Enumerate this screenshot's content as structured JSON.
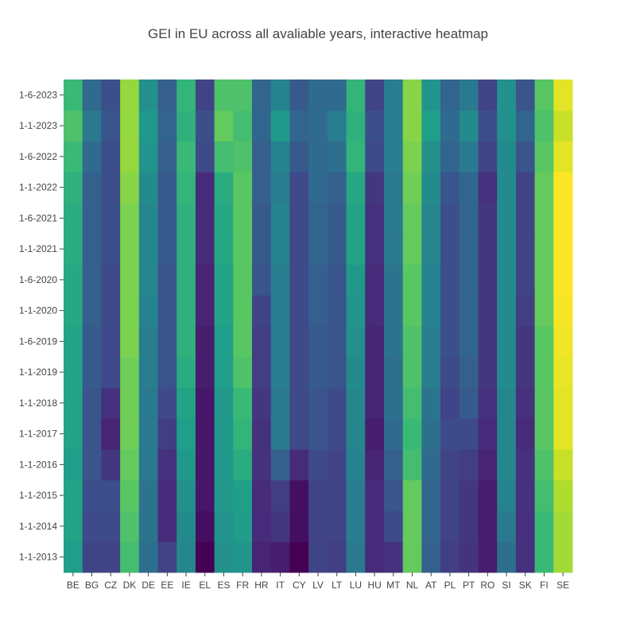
{
  "chart_data": {
    "type": "heatmap",
    "title": "GEI in EU across all avaliable years, interactive heatmap",
    "colorscale": "viridis",
    "value_range": [
      0,
      1
    ],
    "x": [
      "BE",
      "BG",
      "CZ",
      "DK",
      "DE",
      "EE",
      "IE",
      "EL",
      "ES",
      "FR",
      "HR",
      "IT",
      "CY",
      "LV",
      "LT",
      "LU",
      "HU",
      "MT",
      "NL",
      "AT",
      "PL",
      "PT",
      "RO",
      "SI",
      "SK",
      "FI",
      "SE"
    ],
    "y": [
      "1-1-2013",
      "1-1-2014",
      "1-1-2015",
      "1-1-2016",
      "1-1-2017",
      "1-1-2018",
      "1-1-2019",
      "1-6-2019",
      "1-1-2020",
      "1-6-2020",
      "1-1-2021",
      "1-6-2021",
      "1-1-2022",
      "1-6-2022",
      "1-1-2023",
      "1-6-2023"
    ],
    "z": [
      [
        0.56,
        0.2,
        0.2,
        0.7,
        0.36,
        0.2,
        0.46,
        0.0,
        0.5,
        0.52,
        0.1,
        0.08,
        0.0,
        0.2,
        0.18,
        0.4,
        0.12,
        0.14,
        0.76,
        0.3,
        0.18,
        0.15,
        0.08,
        0.36,
        0.14,
        0.68,
        0.86
      ],
      [
        0.58,
        0.22,
        0.22,
        0.72,
        0.38,
        0.12,
        0.48,
        0.04,
        0.52,
        0.55,
        0.12,
        0.16,
        0.04,
        0.2,
        0.2,
        0.42,
        0.12,
        0.22,
        0.76,
        0.32,
        0.2,
        0.16,
        0.08,
        0.4,
        0.14,
        0.68,
        0.86
      ],
      [
        0.58,
        0.24,
        0.24,
        0.74,
        0.38,
        0.12,
        0.5,
        0.06,
        0.54,
        0.56,
        0.12,
        0.18,
        0.04,
        0.2,
        0.2,
        0.42,
        0.12,
        0.26,
        0.76,
        0.32,
        0.2,
        0.16,
        0.08,
        0.44,
        0.14,
        0.7,
        0.88
      ],
      [
        0.56,
        0.26,
        0.16,
        0.76,
        0.4,
        0.14,
        0.54,
        0.06,
        0.54,
        0.62,
        0.14,
        0.3,
        0.12,
        0.22,
        0.2,
        0.44,
        0.1,
        0.3,
        0.7,
        0.34,
        0.2,
        0.18,
        0.1,
        0.46,
        0.14,
        0.72,
        0.92
      ],
      [
        0.58,
        0.26,
        0.1,
        0.78,
        0.4,
        0.18,
        0.56,
        0.06,
        0.54,
        0.66,
        0.14,
        0.4,
        0.22,
        0.26,
        0.22,
        0.46,
        0.08,
        0.34,
        0.68,
        0.36,
        0.22,
        0.22,
        0.12,
        0.46,
        0.12,
        0.74,
        0.96
      ],
      [
        0.58,
        0.26,
        0.14,
        0.78,
        0.4,
        0.22,
        0.58,
        0.06,
        0.54,
        0.68,
        0.16,
        0.4,
        0.22,
        0.26,
        0.22,
        0.46,
        0.1,
        0.36,
        0.7,
        0.38,
        0.2,
        0.28,
        0.14,
        0.46,
        0.14,
        0.74,
        0.96
      ],
      [
        0.58,
        0.28,
        0.22,
        0.78,
        0.42,
        0.26,
        0.62,
        0.08,
        0.56,
        0.72,
        0.18,
        0.42,
        0.22,
        0.28,
        0.26,
        0.48,
        0.1,
        0.36,
        0.72,
        0.42,
        0.22,
        0.3,
        0.16,
        0.48,
        0.16,
        0.74,
        0.97
      ],
      [
        0.58,
        0.28,
        0.22,
        0.8,
        0.42,
        0.26,
        0.64,
        0.08,
        0.56,
        0.74,
        0.18,
        0.42,
        0.22,
        0.28,
        0.26,
        0.5,
        0.1,
        0.38,
        0.72,
        0.42,
        0.24,
        0.32,
        0.16,
        0.48,
        0.16,
        0.74,
        0.98
      ],
      [
        0.6,
        0.3,
        0.22,
        0.8,
        0.44,
        0.26,
        0.64,
        0.1,
        0.58,
        0.74,
        0.2,
        0.42,
        0.22,
        0.3,
        0.26,
        0.52,
        0.12,
        0.38,
        0.74,
        0.44,
        0.24,
        0.32,
        0.16,
        0.48,
        0.18,
        0.76,
        0.99
      ],
      [
        0.6,
        0.3,
        0.22,
        0.8,
        0.46,
        0.26,
        0.64,
        0.1,
        0.58,
        0.74,
        0.26,
        0.42,
        0.22,
        0.3,
        0.26,
        0.54,
        0.12,
        0.38,
        0.74,
        0.44,
        0.24,
        0.32,
        0.16,
        0.48,
        0.2,
        0.76,
        1.0
      ],
      [
        0.62,
        0.3,
        0.24,
        0.8,
        0.46,
        0.28,
        0.64,
        0.12,
        0.6,
        0.74,
        0.28,
        0.44,
        0.22,
        0.32,
        0.28,
        0.58,
        0.14,
        0.4,
        0.76,
        0.46,
        0.24,
        0.32,
        0.16,
        0.48,
        0.2,
        0.76,
        1.0
      ],
      [
        0.62,
        0.3,
        0.24,
        0.8,
        0.46,
        0.28,
        0.64,
        0.12,
        0.6,
        0.74,
        0.28,
        0.44,
        0.22,
        0.32,
        0.28,
        0.58,
        0.14,
        0.4,
        0.76,
        0.46,
        0.24,
        0.32,
        0.16,
        0.48,
        0.2,
        0.76,
        1.0
      ],
      [
        0.64,
        0.3,
        0.24,
        0.82,
        0.48,
        0.28,
        0.66,
        0.12,
        0.62,
        0.74,
        0.3,
        0.42,
        0.22,
        0.34,
        0.3,
        0.6,
        0.16,
        0.4,
        0.78,
        0.48,
        0.26,
        0.32,
        0.14,
        0.48,
        0.2,
        0.76,
        1.0
      ],
      [
        0.68,
        0.34,
        0.24,
        0.84,
        0.52,
        0.3,
        0.68,
        0.22,
        0.7,
        0.72,
        0.3,
        0.44,
        0.28,
        0.34,
        0.36,
        0.66,
        0.22,
        0.42,
        0.8,
        0.5,
        0.32,
        0.4,
        0.2,
        0.48,
        0.26,
        0.74,
        0.96
      ],
      [
        0.72,
        0.4,
        0.26,
        0.84,
        0.54,
        0.32,
        0.64,
        0.24,
        0.76,
        0.7,
        0.32,
        0.54,
        0.32,
        0.34,
        0.42,
        0.64,
        0.24,
        0.42,
        0.82,
        0.56,
        0.34,
        0.48,
        0.24,
        0.5,
        0.32,
        0.72,
        0.92
      ],
      [
        0.68,
        0.34,
        0.24,
        0.84,
        0.5,
        0.3,
        0.66,
        0.2,
        0.72,
        0.72,
        0.32,
        0.44,
        0.28,
        0.34,
        0.34,
        0.66,
        0.2,
        0.42,
        0.82,
        0.52,
        0.32,
        0.4,
        0.2,
        0.5,
        0.26,
        0.74,
        0.96
      ]
    ]
  }
}
